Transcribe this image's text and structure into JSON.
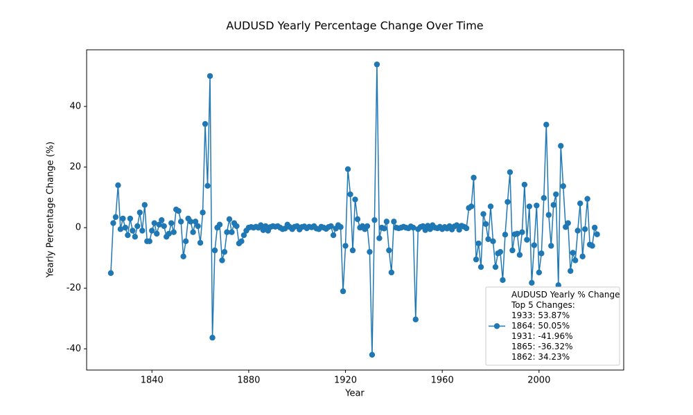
{
  "chart_data": {
    "type": "line",
    "title": "AUDUSD Yearly Percentage Change Over Time",
    "x_label": "Year",
    "y_label": "Yearly Percentage Change (%)",
    "x": [
      1823,
      1824,
      1825,
      1826,
      1827,
      1828,
      1829,
      1830,
      1831,
      1832,
      1833,
      1834,
      1835,
      1836,
      1837,
      1838,
      1839,
      1840,
      1841,
      1842,
      1843,
      1844,
      1845,
      1846,
      1847,
      1848,
      1849,
      1850,
      1851,
      1852,
      1853,
      1854,
      1855,
      1856,
      1857,
      1858,
      1859,
      1860,
      1861,
      1862,
      1863,
      1864,
      1865,
      1866,
      1867,
      1868,
      1869,
      1870,
      1871,
      1872,
      1873,
      1874,
      1875,
      1876,
      1877,
      1878,
      1879,
      1880,
      1881,
      1882,
      1883,
      1884,
      1885,
      1886,
      1887,
      1888,
      1889,
      1890,
      1891,
      1892,
      1893,
      1894,
      1895,
      1896,
      1897,
      1898,
      1899,
      1900,
      1901,
      1902,
      1903,
      1904,
      1905,
      1906,
      1907,
      1908,
      1909,
      1910,
      1911,
      1912,
      1913,
      1914,
      1915,
      1916,
      1917,
      1918,
      1919,
      1920,
      1921,
      1922,
      1923,
      1924,
      1925,
      1926,
      1927,
      1928,
      1929,
      1930,
      1931,
      1932,
      1933,
      1934,
      1935,
      1936,
      1937,
      1938,
      1939,
      1940,
      1941,
      1942,
      1943,
      1944,
      1945,
      1946,
      1947,
      1948,
      1949,
      1950,
      1951,
      1952,
      1953,
      1954,
      1955,
      1956,
      1957,
      1958,
      1959,
      1960,
      1961,
      1962,
      1963,
      1964,
      1965,
      1966,
      1967,
      1968,
      1969,
      1970,
      1971,
      1972,
      1973,
      1974,
      1975,
      1976,
      1977,
      1978,
      1979,
      1980,
      1981,
      1982,
      1983,
      1984,
      1985,
      1986,
      1987,
      1988,
      1989,
      1990,
      1991,
      1992,
      1993,
      1994,
      1995,
      1996,
      1997,
      1998,
      1999,
      2000,
      2001,
      2002,
      2003,
      2004,
      2005,
      2006,
      2007,
      2008,
      2009,
      2010,
      2011,
      2012,
      2013,
      2014,
      2015,
      2016,
      2017,
      2018,
      2019,
      2020,
      2021,
      2022,
      2023,
      2024
    ],
    "series": [
      {
        "name": "AUDUSD Yearly % Change",
        "color": "#1f77b4",
        "values": [
          -15,
          1.5,
          3.5,
          14,
          -0.5,
          3,
          0,
          -2.5,
          3,
          -1,
          -3,
          0.5,
          5,
          -1,
          7.5,
          -4.5,
          -4.5,
          -1,
          1.5,
          -2,
          1,
          2.5,
          0.5,
          -3,
          -2,
          1.5,
          -1.5,
          6,
          5.5,
          2,
          -9.5,
          -4.5,
          3,
          2,
          -1.5,
          2,
          0.5,
          -5,
          5,
          34.23,
          13.8,
          50.05,
          -36.32,
          -7.5,
          0,
          1,
          -10.8,
          -8,
          -1.5,
          2.8,
          -1.5,
          1.5,
          0.5,
          -5.2,
          -4.5,
          -2.5,
          -1,
          0,
          0.2,
          0,
          0.3,
          0,
          0.8,
          -0.8,
          0.5,
          -1,
          0.2,
          0.5,
          0.3,
          0.5,
          0,
          -0.5,
          -0.3,
          1,
          0.2,
          -0.5,
          0.3,
          0.5,
          -0.6,
          0.2,
          0.4,
          -0.2,
          0.3,
          0.1,
          0.5,
          -0.3,
          -0.5,
          0.3,
          0,
          -0.4,
          0.2,
          0.5,
          -2.5,
          -0.3,
          0.8,
          0.2,
          -21,
          -6,
          19.3,
          11,
          -7.5,
          9.3,
          2.8,
          0,
          0.5,
          -0.5,
          0.5,
          -8,
          -41.96,
          2.5,
          53.87,
          -3.5,
          0,
          -0.3,
          2,
          -7.5,
          -14.8,
          2,
          0,
          -0.2,
          0,
          0.3,
          0,
          -0.2,
          0.4,
          0,
          -30.3,
          -0.5,
          0.2,
          0.5,
          -0.8,
          0.6,
          -0.5,
          0.8,
          0,
          -0.2,
          0.3,
          -0.5,
          0.2,
          -0.3,
          0.5,
          -0.6,
          0.4,
          0.8,
          -0.7,
          0.6,
          0.3,
          -0.2,
          6.5,
          7,
          16.5,
          -10.5,
          -5.2,
          -13,
          4.5,
          1.2,
          -3.8,
          7,
          -4.5,
          -13,
          -8.5,
          -8,
          -17.3,
          -2.3,
          8.5,
          18.3,
          -7.5,
          -2.2,
          -2,
          -9,
          -1.5,
          14.2,
          -4,
          7,
          -18.2,
          -5.8,
          7.3,
          -14.8,
          -8.5,
          9.8,
          34,
          4.2,
          -6,
          7.5,
          11,
          -19,
          27,
          13.7,
          0.2,
          1.5,
          -14.3,
          -8.3,
          -10.8,
          -1,
          8,
          -9.5,
          -0.5,
          9.5,
          -5.6,
          -6,
          0,
          -2.2
        ]
      }
    ],
    "legend_notes": [
      "Top 5 Changes:",
      "1933: 53.87%",
      "1864: 50.05%",
      "1931: -41.96%",
      "1865: -36.32%",
      "1862: 34.23%"
    ],
    "legend_position": "lower right",
    "xlim": [
      1813,
      2035
    ],
    "xticks": [
      1840,
      1880,
      1920,
      1960,
      2000
    ],
    "ylim": [
      -47,
      58.7
    ],
    "yticks": [
      -40,
      -20,
      0,
      20,
      40
    ],
    "grid": false,
    "markers": true
  }
}
